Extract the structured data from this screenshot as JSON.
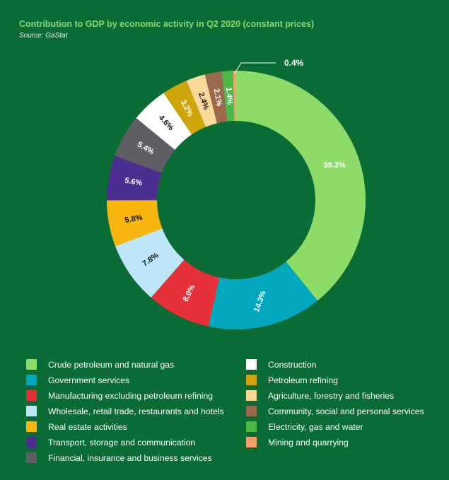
{
  "header": {
    "title": "Contribution to GDP by economic activity in Q2 2020 (constant prices)",
    "source": "Source: GaStat"
  },
  "chart_data": {
    "type": "pie",
    "variant": "donut",
    "title": "Contribution to GDP by economic activity in Q2 2020 (constant prices)",
    "unit": "%",
    "slices": [
      {
        "name": "Crude petroleum and natural gas",
        "value": 39.3,
        "label": "39.3%",
        "color": "#8ddc6a",
        "label_color": "#ffffff"
      },
      {
        "name": "Government services",
        "value": 14.3,
        "label": "14.3%",
        "color": "#00a7bd",
        "label_color": "#ffffff"
      },
      {
        "name": "Manufacturing excluding petroleum refining",
        "value": 8.0,
        "label": "8.0%",
        "color": "#e6303a",
        "label_color": "#ffffff"
      },
      {
        "name": "Wholesale, retail trade, restaurants and hotels",
        "value": 7.8,
        "label": "7.8%",
        "color": "#bfe6f8",
        "label_color": "#111111"
      },
      {
        "name": "Real estate activities",
        "value": 5.8,
        "label": "5.8%",
        "color": "#f6b60f",
        "label_color": "#111111"
      },
      {
        "name": "Transport, storage and communication",
        "value": 5.6,
        "label": "5.6%",
        "color": "#4b2e8f",
        "label_color": "#ffffff"
      },
      {
        "name": "Financial, insurance and business services",
        "value": 5.4,
        "label": "5.4%",
        "color": "#5f6066",
        "label_color": "#ffffff"
      },
      {
        "name": "Construction",
        "value": 4.6,
        "label": "4.6%",
        "color": "#ffffff",
        "label_color": "#111111"
      },
      {
        "name": "Petroleum refining",
        "value": 3.2,
        "label": "3.2%",
        "color": "#cfa30a",
        "label_color": "#ffffff"
      },
      {
        "name": "Agriculture, forestry and fisheries",
        "value": 2.4,
        "label": "2.4%",
        "color": "#fbd99a",
        "label_color": "#111111"
      },
      {
        "name": "Community, social and personal services",
        "value": 2.1,
        "label": "2.1%",
        "color": "#9b6a4e",
        "label_color": "#ffffff"
      },
      {
        "name": "Electricity, gas and water",
        "value": 1.4,
        "label": "1.4%",
        "color": "#4db848",
        "label_color": "#ffffff"
      },
      {
        "name": "Mining and quarrying",
        "value": 0.4,
        "label": "0.4%",
        "color": "#f4a06b",
        "label_color": "#ffffff"
      }
    ],
    "legend": "bottom",
    "legend_columns": [
      [
        "Crude petroleum and natural gas",
        "Government services",
        "Manufacturing excluding petroleum refining",
        "Wholesale, retail trade, restaurants and hotels",
        "Real estate activities",
        "Transport, storage and communication",
        "Financial, insurance and business services"
      ],
      [
        "Construction",
        "Petroleum refining",
        "Agriculture, forestry and fisheries",
        "Community, social and personal services",
        "Electricity, gas and water",
        "Mining and quarrying"
      ]
    ]
  }
}
